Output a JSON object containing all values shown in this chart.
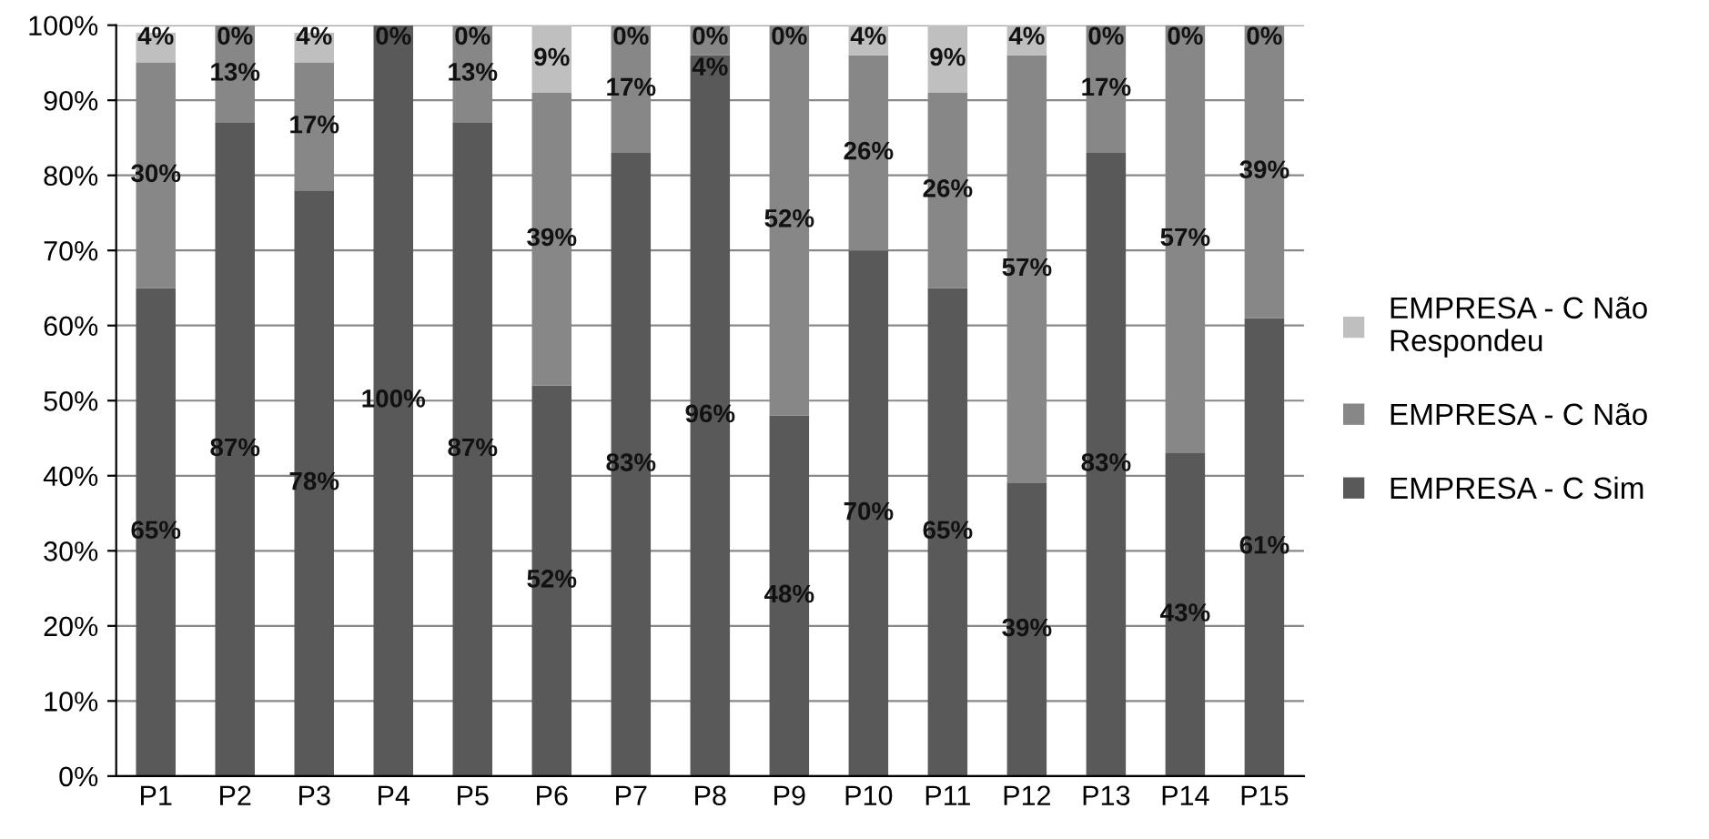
{
  "chart_data": {
    "type": "bar",
    "stacked": true,
    "categories": [
      "P1",
      "P2",
      "P3",
      "P4",
      "P5",
      "P6",
      "P7",
      "P8",
      "P9",
      "P10",
      "P11",
      "P12",
      "P13",
      "P14",
      "P15"
    ],
    "series": [
      {
        "name": "EMPRESA - C Sim",
        "color": "#595959",
        "values": [
          65,
          87,
          78,
          100,
          87,
          52,
          83,
          96,
          48,
          70,
          65,
          39,
          83,
          43,
          61
        ],
        "value_labels": [
          "65%",
          "87%",
          "78%",
          "100%",
          "87%",
          "52%",
          "83%",
          "96%",
          "48%",
          "70%",
          "65%",
          "39%",
          "83%",
          "43%",
          "61%"
        ]
      },
      {
        "name": "EMPRESA - C Não",
        "color": "#878787",
        "values": [
          30,
          13,
          17,
          0,
          13,
          39,
          17,
          4,
          52,
          26,
          26,
          57,
          17,
          57,
          39
        ],
        "value_labels": [
          "30%",
          "13%",
          "17%",
          null,
          "13%",
          "39%",
          "17%",
          "4%",
          "52%",
          "26%",
          "26%",
          "57%",
          "17%",
          "57%",
          "39%"
        ]
      },
      {
        "name": "EMPRESA - C Não\nRespondeu",
        "color": "#bfbfbf",
        "values": [
          4,
          0,
          4,
          0,
          0,
          9,
          0,
          0,
          0,
          4,
          9,
          4,
          0,
          0,
          0
        ],
        "value_labels": [
          "4%",
          "0%",
          "4%",
          "0%",
          "0%",
          "9%",
          "0%",
          "0%",
          "0%",
          "4%",
          "9%",
          "4%",
          "0%",
          "0%",
          "0%"
        ]
      }
    ],
    "ylim": [
      0,
      100
    ],
    "yticks": [
      {
        "value": 0,
        "label": "0%"
      },
      {
        "value": 10,
        "label": "10%"
      },
      {
        "value": 20,
        "label": "20%"
      },
      {
        "value": 30,
        "label": "30%"
      },
      {
        "value": 40,
        "label": "40%"
      },
      {
        "value": 50,
        "label": "50%"
      },
      {
        "value": 60,
        "label": "60%"
      },
      {
        "value": 70,
        "label": "70%"
      },
      {
        "value": 80,
        "label": "80%"
      },
      {
        "value": 90,
        "label": "90%"
      },
      {
        "value": 100,
        "label": "100%"
      }
    ],
    "grid": "y",
    "legend": "right"
  }
}
